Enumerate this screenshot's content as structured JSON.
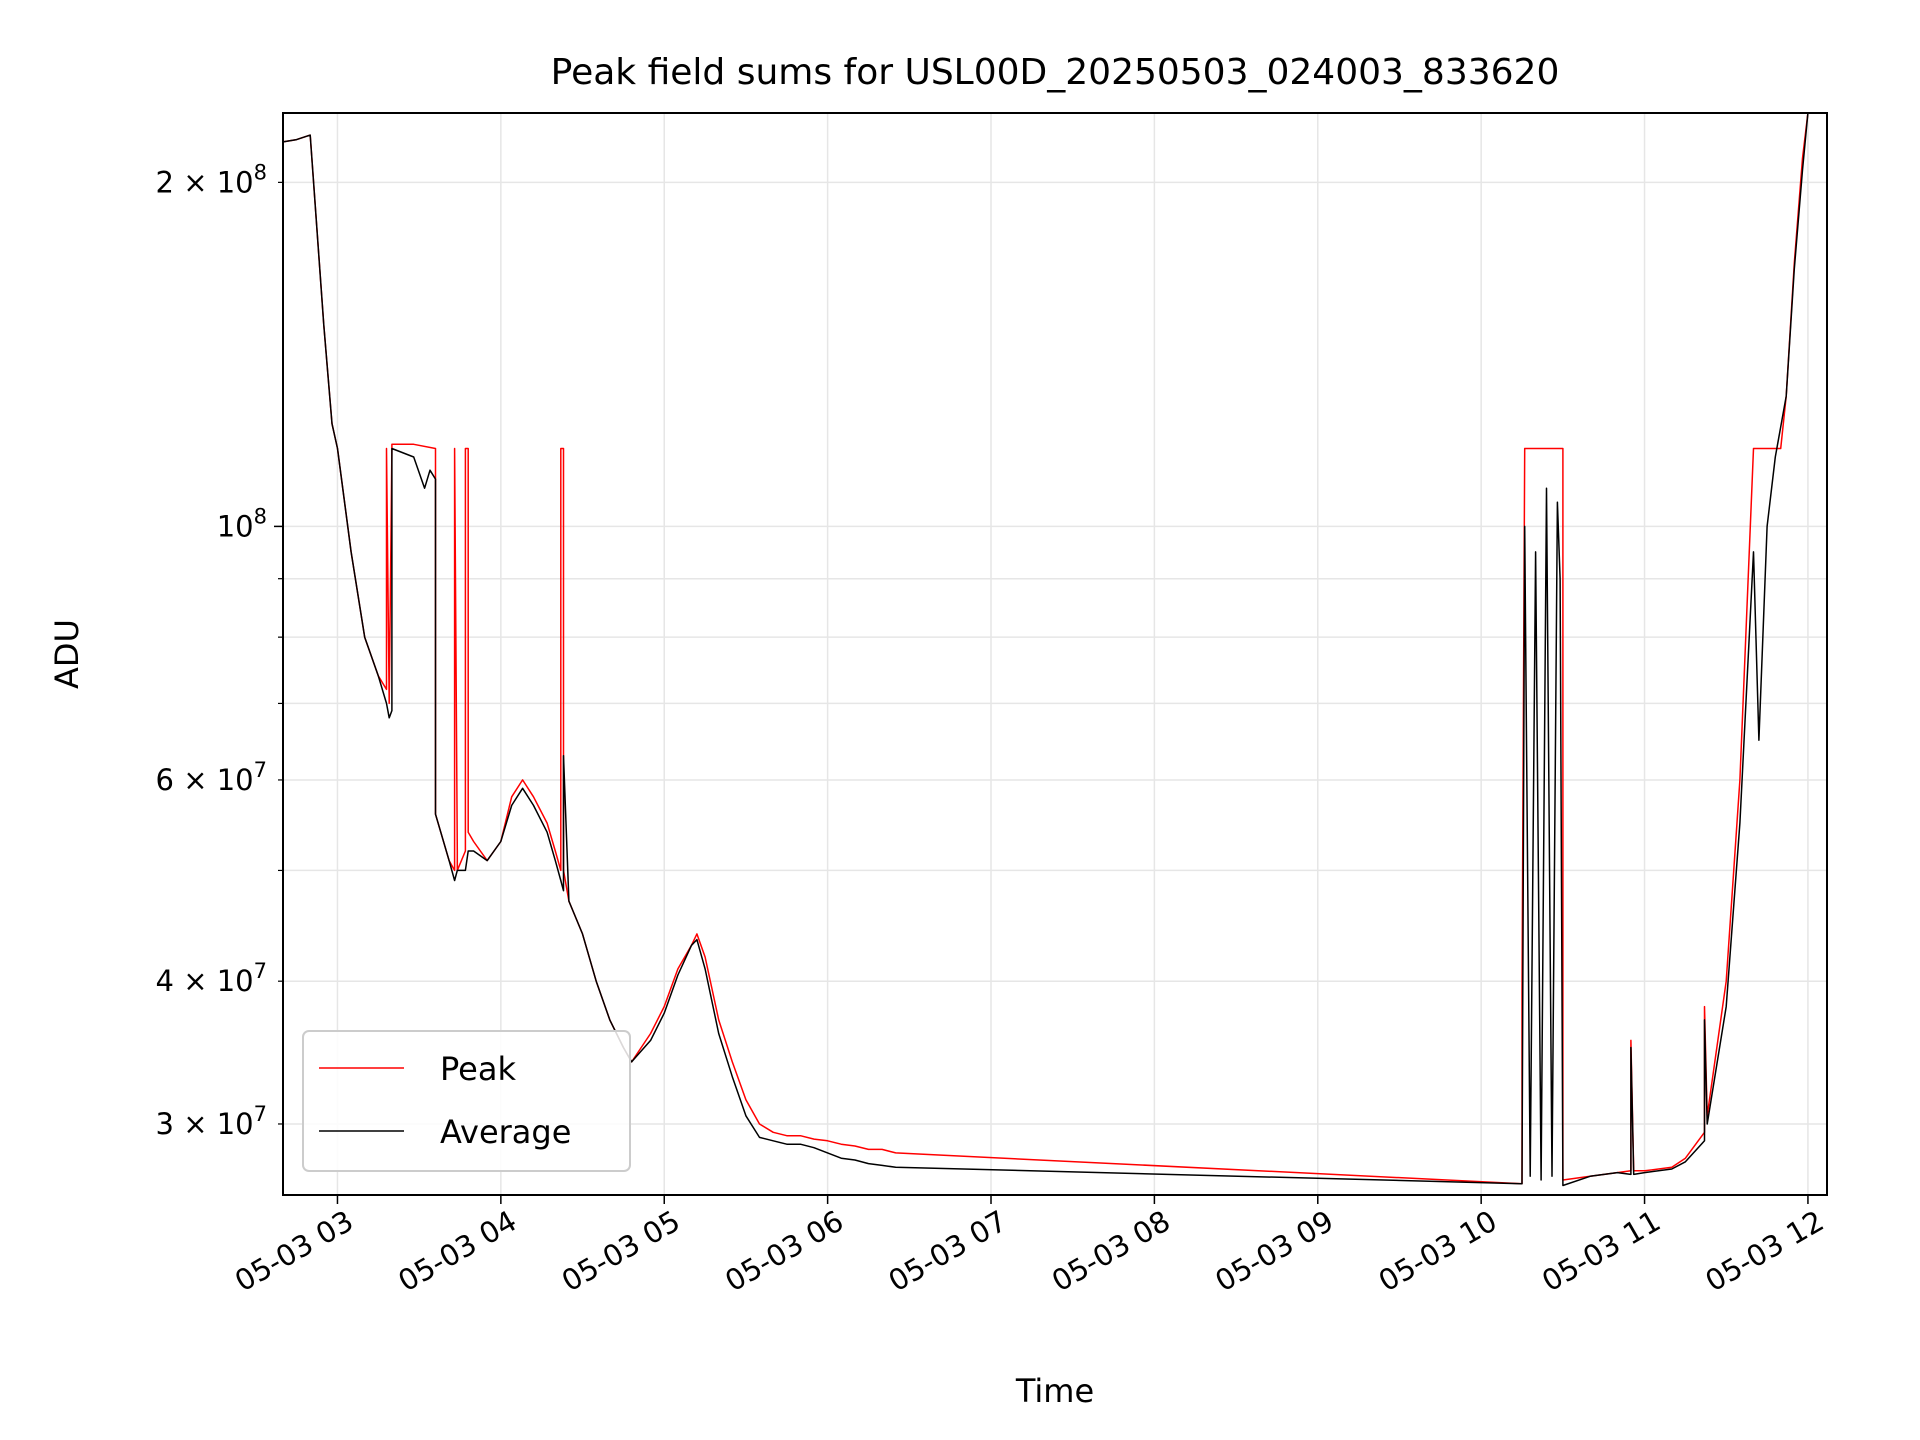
{
  "chart_data": {
    "type": "line",
    "title": "Peak field sums for USL00D_20250503_024003_833620",
    "xlabel": "Time",
    "ylabel": "ADU",
    "yscale": "log",
    "ylim": [
      26000000,
      230000000
    ],
    "xlim": [
      "2025-05-03 02:40",
      "2025-05-03 12:07"
    ],
    "grid": true,
    "legend_position": "lower-left",
    "x_tick_labels": [
      "05-03 03",
      "05-03 04",
      "05-03 05",
      "05-03 06",
      "05-03 07",
      "05-03 08",
      "05-03 09",
      "05-03 10",
      "05-03 11",
      "05-03 12"
    ],
    "x_ticks": [
      "2025-05-03 03:00",
      "2025-05-03 04:00",
      "2025-05-03 05:00",
      "2025-05-03 06:00",
      "2025-05-03 07:00",
      "2025-05-03 08:00",
      "2025-05-03 09:00",
      "2025-05-03 10:00",
      "2025-05-03 11:00",
      "2025-05-03 12:00"
    ],
    "y_ticks": [
      {
        "value": 200000000,
        "mantissa": "2",
        "exponent": "8"
      },
      {
        "value": 100000000,
        "mantissa": "",
        "exponent": "8"
      },
      {
        "value": 60000000,
        "mantissa": "6",
        "exponent": "7"
      },
      {
        "value": 40000000,
        "mantissa": "4",
        "exponent": "7"
      },
      {
        "value": 30000000,
        "mantissa": "3",
        "exponent": "7"
      }
    ],
    "series": [
      {
        "name": "Peak",
        "color": "#ff0000",
        "x": [
          "2025-05-03 02:40",
          "2025-05-03 02:45",
          "2025-05-03 02:50",
          "2025-05-03 02:55",
          "2025-05-03 02:58",
          "2025-05-03 03:00",
          "2025-05-03 03:05",
          "2025-05-03 03:10",
          "2025-05-03 03:15",
          "2025-05-03 03:18",
          "2025-05-03 03:18",
          "2025-05-03 03:19",
          "2025-05-03 03:20",
          "2025-05-03 03:20",
          "2025-05-03 03:28",
          "2025-05-03 03:36",
          "2025-05-03 03:36",
          "2025-05-03 03:41",
          "2025-05-03 03:43",
          "2025-05-03 03:43",
          "2025-05-03 03:44",
          "2025-05-03 03:44",
          "2025-05-03 03:47",
          "2025-05-03 03:47",
          "2025-05-03 03:48",
          "2025-05-03 03:48",
          "2025-05-03 03:50",
          "2025-05-03 03:55",
          "2025-05-03 04:00",
          "2025-05-03 04:04",
          "2025-05-03 04:08",
          "2025-05-03 04:12",
          "2025-05-03 04:17",
          "2025-05-03 04:20",
          "2025-05-03 04:22",
          "2025-05-03 04:22",
          "2025-05-03 04:23",
          "2025-05-03 04:23",
          "2025-05-03 04:25",
          "2025-05-03 04:30",
          "2025-05-03 04:35",
          "2025-05-03 04:40",
          "2025-05-03 04:45",
          "2025-05-03 04:48",
          "2025-05-03 04:55",
          "2025-05-03 05:00",
          "2025-05-03 05:05",
          "2025-05-03 05:10",
          "2025-05-03 05:12",
          "2025-05-03 05:15",
          "2025-05-03 05:20",
          "2025-05-03 05:25",
          "2025-05-03 05:30",
          "2025-05-03 05:35",
          "2025-05-03 05:40",
          "2025-05-03 05:45",
          "2025-05-03 05:50",
          "2025-05-03 05:55",
          "2025-05-03 06:00",
          "2025-05-03 06:05",
          "2025-05-03 06:10",
          "2025-05-03 06:15",
          "2025-05-03 06:20",
          "2025-05-03 06:25",
          "2025-05-03 10:15",
          "2025-05-03 10:15",
          "2025-05-03 10:16",
          "2025-05-03 10:29",
          "2025-05-03 10:30",
          "2025-05-03 10:30",
          "2025-05-03 10:40",
          "2025-05-03 10:50",
          "2025-05-03 10:55",
          "2025-05-03 10:55",
          "2025-05-03 10:56",
          "2025-05-03 11:00",
          "2025-05-03 11:10",
          "2025-05-03 11:15",
          "2025-05-03 11:22",
          "2025-05-03 11:22",
          "2025-05-03 11:23",
          "2025-05-03 11:30",
          "2025-05-03 11:35",
          "2025-05-03 11:40",
          "2025-05-03 11:40",
          "2025-05-03 11:50",
          "2025-05-03 11:52",
          "2025-05-03 11:55",
          "2025-05-03 11:58",
          "2025-05-03 12:00"
        ],
        "y": [
          217000000,
          218000000,
          220000000,
          150000000,
          123000000,
          117000000,
          95000000,
          80000000,
          74000000,
          72000000,
          117000000,
          70000000,
          117000000,
          118000000,
          118000000,
          117000000,
          56000000,
          51000000,
          50000000,
          117000000,
          52000000,
          50000000,
          52000000,
          117000000,
          117000000,
          54000000,
          53000000,
          51000000,
          53000000,
          58000000,
          60000000,
          58000000,
          55000000,
          52000000,
          50000000,
          117000000,
          117000000,
          50000000,
          47000000,
          44000000,
          40000000,
          37000000,
          35000000,
          34000000,
          36000000,
          38000000,
          41000000,
          43000000,
          44000000,
          42000000,
          37000000,
          34000000,
          31500000,
          30000000,
          29500000,
          29300000,
          29300000,
          29100000,
          29000000,
          28800000,
          28700000,
          28500000,
          28500000,
          28300000,
          26600000,
          39000000,
          117000000,
          117000000,
          117000000,
          26800000,
          27000000,
          27200000,
          27300000,
          35500000,
          27300000,
          27300000,
          27500000,
          28000000,
          29500000,
          38000000,
          30500000,
          40000000,
          60000000,
          117000000,
          117000000,
          117000000,
          130000000,
          170000000,
          210000000,
          230000000
        ]
      },
      {
        "name": "Average",
        "color": "#000000",
        "x": [
          "2025-05-03 02:40",
          "2025-05-03 02:45",
          "2025-05-03 02:50",
          "2025-05-03 02:55",
          "2025-05-03 02:58",
          "2025-05-03 03:00",
          "2025-05-03 03:05",
          "2025-05-03 03:10",
          "2025-05-03 03:15",
          "2025-05-03 03:18",
          "2025-05-03 03:19",
          "2025-05-03 03:20",
          "2025-05-03 03:20",
          "2025-05-03 03:28",
          "2025-05-03 03:32",
          "2025-05-03 03:34",
          "2025-05-03 03:36",
          "2025-05-03 03:36",
          "2025-05-03 03:41",
          "2025-05-03 03:43",
          "2025-05-03 03:44",
          "2025-05-03 03:47",
          "2025-05-03 03:48",
          "2025-05-03 03:50",
          "2025-05-03 03:55",
          "2025-05-03 04:00",
          "2025-05-03 04:04",
          "2025-05-03 04:08",
          "2025-05-03 04:12",
          "2025-05-03 04:17",
          "2025-05-03 04:20",
          "2025-05-03 04:22",
          "2025-05-03 04:23",
          "2025-05-03 04:23",
          "2025-05-03 04:25",
          "2025-05-03 04:30",
          "2025-05-03 04:35",
          "2025-05-03 04:40",
          "2025-05-03 04:45",
          "2025-05-03 04:48",
          "2025-05-03 04:55",
          "2025-05-03 05:00",
          "2025-05-03 05:05",
          "2025-05-03 05:10",
          "2025-05-03 05:12",
          "2025-05-03 05:15",
          "2025-05-03 05:20",
          "2025-05-03 05:25",
          "2025-05-03 05:30",
          "2025-05-03 05:35",
          "2025-05-03 05:40",
          "2025-05-03 05:45",
          "2025-05-03 05:50",
          "2025-05-03 05:55",
          "2025-05-03 06:00",
          "2025-05-03 06:05",
          "2025-05-03 06:10",
          "2025-05-03 06:15",
          "2025-05-03 06:20",
          "2025-05-03 06:25",
          "2025-05-03 10:15",
          "2025-05-03 10:16",
          "2025-05-03 10:18",
          "2025-05-03 10:20",
          "2025-05-03 10:22",
          "2025-05-03 10:24",
          "2025-05-03 10:26",
          "2025-05-03 10:28",
          "2025-05-03 10:29",
          "2025-05-03 10:30",
          "2025-05-03 10:40",
          "2025-05-03 10:50",
          "2025-05-03 10:55",
          "2025-05-03 10:55",
          "2025-05-03 10:56",
          "2025-05-03 11:00",
          "2025-05-03 11:10",
          "2025-05-03 11:15",
          "2025-05-03 11:22",
          "2025-05-03 11:22",
          "2025-05-03 11:23",
          "2025-05-03 11:30",
          "2025-05-03 11:35",
          "2025-05-03 11:40",
          "2025-05-03 11:42",
          "2025-05-03 11:45",
          "2025-05-03 11:48",
          "2025-05-03 11:52",
          "2025-05-03 11:55",
          "2025-05-03 11:58",
          "2025-05-03 12:00"
        ],
        "y": [
          217000000,
          218000000,
          220000000,
          150000000,
          123000000,
          117000000,
          95000000,
          80000000,
          74000000,
          70000000,
          68000000,
          69000000,
          117000000,
          115000000,
          108000000,
          112000000,
          110000000,
          56000000,
          51000000,
          49000000,
          50000000,
          50000000,
          52000000,
          52000000,
          51000000,
          53000000,
          57000000,
          59000000,
          57000000,
          54000000,
          51000000,
          49000000,
          48000000,
          63000000,
          47000000,
          44000000,
          40000000,
          37000000,
          35000000,
          34000000,
          35500000,
          37500000,
          40500000,
          43000000,
          43500000,
          41000000,
          36000000,
          33000000,
          30500000,
          29200000,
          29000000,
          28800000,
          28800000,
          28600000,
          28300000,
          28000000,
          27900000,
          27700000,
          27600000,
          27500000,
          26600000,
          100000000,
          27000000,
          95000000,
          26800000,
          108000000,
          27000000,
          105000000,
          90000000,
          26500000,
          27000000,
          27200000,
          27100000,
          35000000,
          27100000,
          27200000,
          27400000,
          27800000,
          29000000,
          37000000,
          30000000,
          38000000,
          55000000,
          95000000,
          65000000,
          100000000,
          115000000,
          130000000,
          168000000,
          205000000,
          230000000
        ]
      }
    ]
  }
}
